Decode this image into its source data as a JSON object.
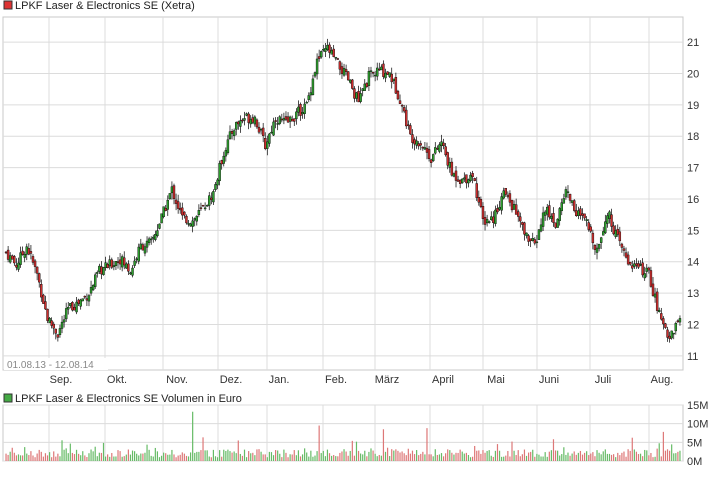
{
  "colors": {
    "up": "#2e9e2e",
    "down": "#cc2e2e",
    "grid": "#dcdcdc",
    "wick": "#000000",
    "volume_up": "#66bb66",
    "volume_down": "#dd7777"
  },
  "chart_data": [
    {
      "type": "candlestick",
      "legend": "LPKF Laser & Electronics SE (Xetra)",
      "date_range_label": "01.08.13 - 12.08.14",
      "x_ticks": [
        "Sep.",
        "Okt.",
        "Nov.",
        "Dez.",
        "Jan.",
        "Feb.",
        "März",
        "April",
        "Mai",
        "Juni",
        "Juli",
        "Aug."
      ],
      "y_ticks": [
        11,
        12,
        13,
        14,
        15,
        16,
        17,
        18,
        19,
        20,
        21
      ],
      "ylim": [
        10.55,
        21.8
      ],
      "close_path": [
        [
          0,
          14.3
        ],
        [
          5,
          13.9
        ],
        [
          10,
          14.5
        ],
        [
          15,
          13.6
        ],
        [
          20,
          12.2
        ],
        [
          25,
          11.7
        ],
        [
          30,
          12.5
        ],
        [
          35,
          12.7
        ],
        [
          40,
          13.0
        ],
        [
          45,
          13.7
        ],
        [
          50,
          13.9
        ],
        [
          55,
          14.1
        ],
        [
          60,
          13.7
        ],
        [
          65,
          14.5
        ],
        [
          70,
          14.6
        ],
        [
          75,
          15.4
        ],
        [
          80,
          16.3
        ],
        [
          85,
          15.4
        ],
        [
          90,
          15.3
        ],
        [
          95,
          15.7
        ],
        [
          100,
          16.2
        ],
        [
          105,
          17.5
        ],
        [
          110,
          18.3
        ],
        [
          115,
          18.6
        ],
        [
          120,
          18.6
        ],
        [
          125,
          17.7
        ],
        [
          130,
          18.6
        ],
        [
          135,
          18.4
        ],
        [
          140,
          18.7
        ],
        [
          145,
          19.0
        ],
        [
          150,
          20.4
        ],
        [
          155,
          20.8
        ],
        [
          160,
          20.3
        ],
        [
          165,
          19.8
        ],
        [
          170,
          19.1
        ],
        [
          175,
          19.9
        ],
        [
          180,
          20.1
        ],
        [
          185,
          20.0
        ],
        [
          190,
          19.2
        ],
        [
          195,
          18.0
        ],
        [
          200,
          17.8
        ],
        [
          205,
          17.3
        ],
        [
          210,
          17.8
        ],
        [
          215,
          16.8
        ],
        [
          220,
          16.6
        ],
        [
          225,
          16.8
        ],
        [
          230,
          15.3
        ],
        [
          235,
          15.4
        ],
        [
          240,
          16.2
        ],
        [
          245,
          15.7
        ],
        [
          250,
          14.9
        ],
        [
          255,
          14.5
        ],
        [
          260,
          15.7
        ],
        [
          265,
          15.2
        ],
        [
          270,
          16.3
        ],
        [
          275,
          15.6
        ],
        [
          280,
          15.2
        ],
        [
          285,
          14.4
        ],
        [
          290,
          15.6
        ],
        [
          295,
          14.7
        ],
        [
          300,
          14.0
        ],
        [
          305,
          13.8
        ],
        [
          310,
          13.6
        ],
        [
          315,
          12.3
        ],
        [
          320,
          11.6
        ],
        [
          325,
          12.2
        ]
      ],
      "volume_ticks": [
        "15M",
        "10M",
        "5M",
        "0M"
      ],
      "volume_legend": "LPKF Laser & Electronics SE Volumen in Euro",
      "volume_ylim": [
        0,
        15
      ]
    }
  ]
}
